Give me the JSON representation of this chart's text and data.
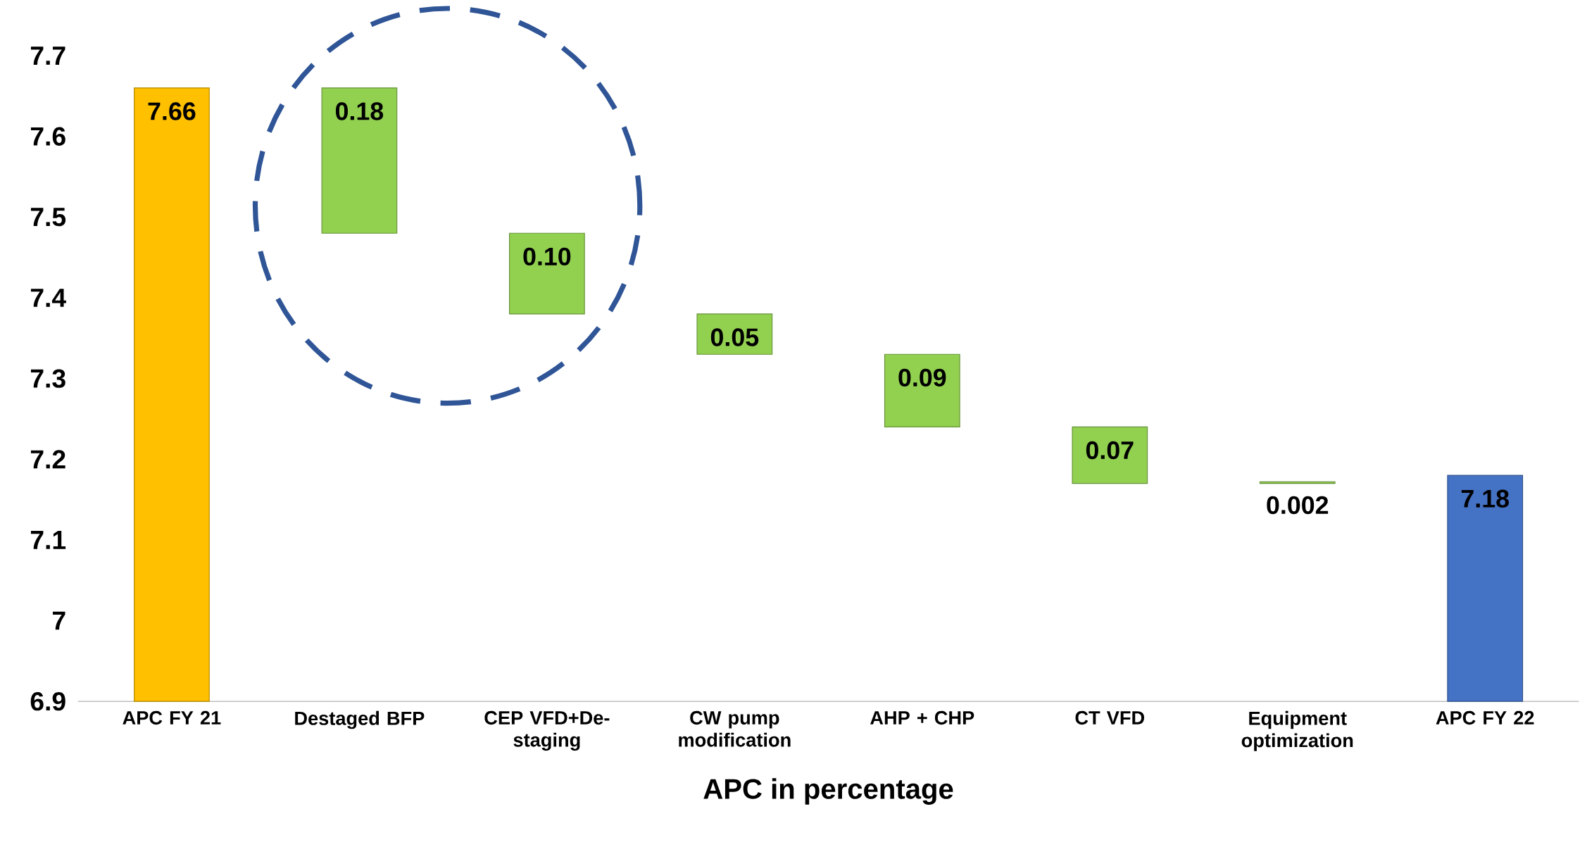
{
  "chart_data": {
    "type": "bar",
    "xlabel": "APC in percentage",
    "categories": [
      "APC FY 21",
      "Destaged BFP",
      "CEP VFD+De-staging",
      "CW pump modification",
      "AHP + CHP",
      "CT VFD",
      "Equipment optimization",
      "APC FY 22"
    ],
    "values": [
      7.66,
      0.18,
      0.1,
      0.05,
      0.09,
      0.07,
      0.002,
      7.18
    ],
    "base": [
      null,
      7.48,
      7.38,
      7.33,
      7.24,
      7.17,
      7.17,
      null
    ],
    "value_labels": [
      "7.66",
      "0.18",
      "0.10",
      "0.05",
      "0.09",
      "0.07",
      "0.002",
      "7.18"
    ],
    "colors": [
      "#ffc000",
      "#92d050",
      "#92d050",
      "#92d050",
      "#92d050",
      "#92d050",
      "#92d050",
      "#4472c4"
    ],
    "ylim": [
      6.9,
      7.7
    ],
    "yticks": [
      6.9,
      7,
      7.1,
      7.2,
      7.3,
      7.4,
      7.5,
      7.6,
      7.7
    ],
    "grid": false
  }
}
